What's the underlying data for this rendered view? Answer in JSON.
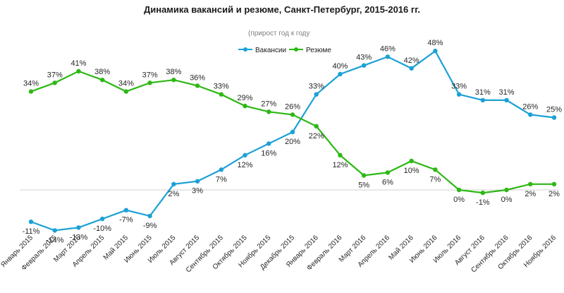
{
  "chart_data": {
    "type": "line",
    "title": "Динамика вакансий и резюме, Санкт-Петербург,  2015-2016 гг.",
    "subtitle": "(прирост  год к году",
    "xlabel": "",
    "ylabel": "",
    "categories": [
      "Январь 2015",
      "Февраль 2015",
      "Март 2015",
      "Апрель 2015",
      "Май 2015",
      "Июнь 2015",
      "Июль 2015",
      "Август 2015",
      "Сентябрь 2015",
      "Октябрь 2015",
      "Ноябрь 2015",
      "Декабрь 2015",
      "Январь 2016",
      "Февраль 2016",
      "Март 2016",
      "Апрель 2016",
      "Май 2016",
      "Июнь 2016",
      "Июль 2016",
      "Август 2016",
      "Сентябрь 2016",
      "Октябрь 2016",
      "Ноябрь 2016"
    ],
    "series": [
      {
        "name": "Вакансии",
        "color": "#1ba1d6",
        "values": [
          -11,
          -14,
          -13,
          -10,
          -7,
          -9,
          2,
          3,
          7,
          12,
          16,
          20,
          33,
          40,
          43,
          46,
          42,
          48,
          33,
          31,
          31,
          26,
          25
        ],
        "labels": [
          "-11%",
          "-14%",
          "-13%",
          "-10%",
          "-7%",
          "-9%",
          "2%",
          "3%",
          "7%",
          "12%",
          "16%",
          "20%",
          "33%",
          "40%",
          "43%",
          "46%",
          "42%",
          "48%",
          "33%",
          "31%",
          "31%",
          "26%",
          "25%"
        ]
      },
      {
        "name": "Резюме",
        "color": "#2db814",
        "values": [
          34,
          37,
          41,
          38,
          34,
          37,
          38,
          36,
          33,
          29,
          27,
          26,
          22,
          12,
          5,
          6,
          10,
          7,
          0,
          -1,
          0,
          2,
          2
        ],
        "labels": [
          "34%",
          "37%",
          "41%",
          "38%",
          "34%",
          "37%",
          "38%",
          "36%",
          "33%",
          "29%",
          "27%",
          "26%",
          "22%",
          "12%",
          "5%",
          "6%",
          "10%",
          "7%",
          "0%",
          "-1%",
          "0%",
          "2%",
          "2%"
        ]
      }
    ],
    "ylim": [
      -20,
      55
    ],
    "grid": false,
    "legend_position": "top-center"
  }
}
